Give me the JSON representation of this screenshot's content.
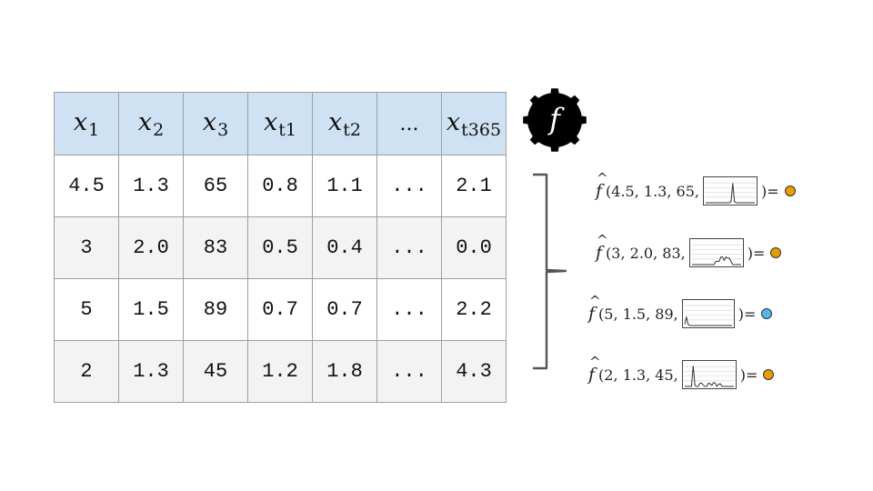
{
  "table": {
    "headers": [
      {
        "base": "x",
        "sub": "1"
      },
      {
        "base": "x",
        "sub": "2"
      },
      {
        "base": "x",
        "sub": "3"
      },
      {
        "base": "x",
        "sub": "t1"
      },
      {
        "base": "x",
        "sub": "t2"
      },
      {
        "base": "...",
        "sub": ""
      },
      {
        "base": "x",
        "sub": "t365"
      }
    ],
    "rows": [
      [
        "4.5",
        "1.3",
        "65",
        "0.8",
        "1.1",
        "...",
        "2.1"
      ],
      [
        "3",
        "2.0",
        "83",
        "0.5",
        "0.4",
        "...",
        "0.0"
      ],
      [
        "5",
        "1.5",
        "89",
        "0.7",
        "0.7",
        "...",
        "2.2"
      ],
      [
        "2",
        "1.3",
        "45",
        "1.2",
        "1.8",
        "...",
        "4.3"
      ]
    ]
  },
  "model": {
    "symbol": "f",
    "icon": "gear-icon"
  },
  "predictions": {
    "hat_symbol": "f",
    "equals": ")=",
    "items": [
      {
        "args": "(4.5, 1.3, 65,",
        "dot_color": "#e69f00",
        "signal": [
          0,
          0,
          0,
          0,
          0,
          0,
          0,
          0,
          0,
          0,
          0,
          0,
          0,
          0,
          0,
          0.05,
          0.9,
          0.05,
          0,
          0,
          0,
          0,
          0,
          0,
          0,
          0,
          0,
          0,
          0,
          0
        ]
      },
      {
        "args": "(3, 2.0, 83,",
        "dot_color": "#e69f00",
        "signal": [
          0,
          0,
          0,
          0,
          0,
          0,
          0,
          0,
          0,
          0,
          0,
          0,
          0,
          0,
          0.15,
          0.15,
          0.15,
          0.35,
          0.35,
          0.2,
          0.35,
          0.3,
          0.3,
          0.15,
          0,
          0,
          0,
          0,
          0,
          0
        ]
      },
      {
        "args": "(5, 1.5, 89,",
        "dot_color": "#56b4e9",
        "signal": [
          0.05,
          0.4,
          0.05,
          0,
          0,
          0,
          0,
          0,
          0,
          0,
          0,
          0,
          0,
          0,
          0,
          0,
          0,
          0,
          0,
          0,
          0,
          0,
          0,
          0,
          0,
          0,
          0,
          0,
          0,
          0
        ]
      },
      {
        "args": "(2, 1.3, 45,",
        "dot_color": "#e69f00",
        "signal": [
          0,
          0,
          0,
          0,
          0,
          0.95,
          0.05,
          0,
          0,
          0.15,
          0.15,
          0.05,
          0,
          0,
          0.15,
          0.12,
          0.05,
          0.18,
          0.15,
          0,
          0.1,
          0.12,
          0,
          0,
          0,
          0,
          0,
          0,
          0,
          0
        ]
      }
    ]
  }
}
